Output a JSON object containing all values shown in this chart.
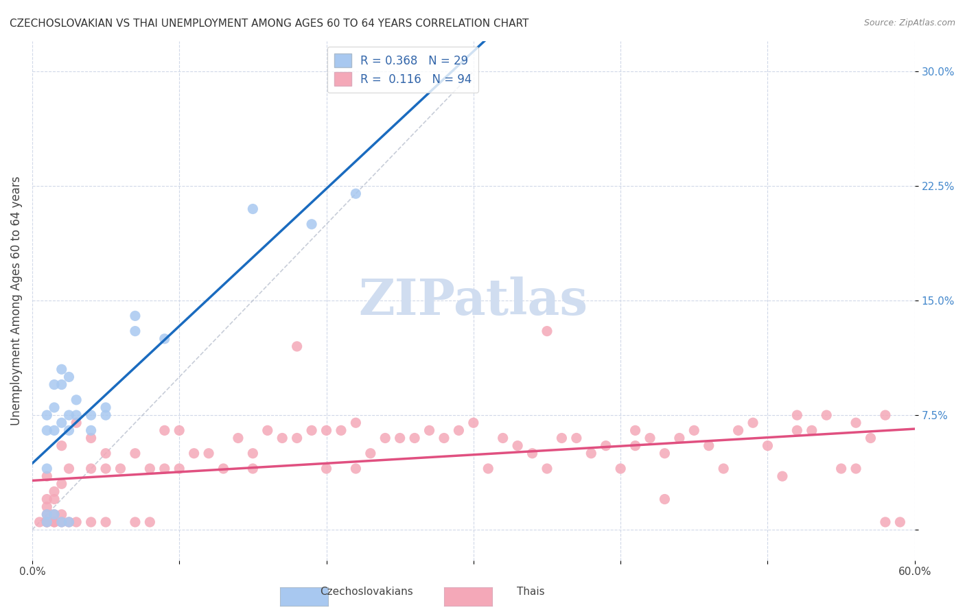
{
  "title": "CZECHOSLOVAKIAN VS THAI UNEMPLOYMENT AMONG AGES 60 TO 64 YEARS CORRELATION CHART",
  "source": "Source: ZipAtlas.com",
  "xlabel": "",
  "ylabel": "Unemployment Among Ages 60 to 64 years",
  "xmin": 0.0,
  "xmax": 0.6,
  "ymin": -0.02,
  "ymax": 0.32,
  "yticks": [
    0.0,
    0.075,
    0.15,
    0.225,
    0.3
  ],
  "ytick_labels": [
    "",
    "7.5%",
    "15.0%",
    "22.5%",
    "30.0%"
  ],
  "xticks": [
    0.0,
    0.1,
    0.2,
    0.3,
    0.4,
    0.5,
    0.6
  ],
  "xtick_labels": [
    "0.0%",
    "",
    "",
    "",
    "",
    "",
    "60.0%"
  ],
  "czech_R": 0.368,
  "czech_N": 29,
  "thai_R": 0.116,
  "thai_N": 94,
  "czech_color": "#a8c8f0",
  "thai_color": "#f4a8b8",
  "czech_line_color": "#1a6bbf",
  "thai_line_color": "#e05080",
  "watermark_color": "#d0ddf0",
  "background_color": "#ffffff",
  "grid_color": "#d0d8e8",
  "czech_x": [
    0.01,
    0.01,
    0.01,
    0.01,
    0.01,
    0.015,
    0.015,
    0.015,
    0.015,
    0.02,
    0.02,
    0.02,
    0.02,
    0.025,
    0.025,
    0.025,
    0.025,
    0.03,
    0.03,
    0.04,
    0.04,
    0.05,
    0.05,
    0.07,
    0.07,
    0.09,
    0.15,
    0.19,
    0.22
  ],
  "czech_y": [
    0.005,
    0.01,
    0.04,
    0.065,
    0.075,
    0.01,
    0.065,
    0.08,
    0.095,
    0.005,
    0.07,
    0.095,
    0.105,
    0.005,
    0.065,
    0.075,
    0.1,
    0.075,
    0.085,
    0.065,
    0.075,
    0.075,
    0.08,
    0.13,
    0.14,
    0.125,
    0.21,
    0.2,
    0.22
  ],
  "thai_x": [
    0.005,
    0.01,
    0.01,
    0.01,
    0.01,
    0.01,
    0.01,
    0.015,
    0.015,
    0.015,
    0.015,
    0.015,
    0.02,
    0.02,
    0.02,
    0.02,
    0.025,
    0.025,
    0.03,
    0.03,
    0.04,
    0.04,
    0.04,
    0.05,
    0.05,
    0.05,
    0.06,
    0.07,
    0.07,
    0.08,
    0.08,
    0.09,
    0.09,
    0.1,
    0.1,
    0.11,
    0.12,
    0.13,
    0.14,
    0.15,
    0.15,
    0.16,
    0.17,
    0.18,
    0.19,
    0.2,
    0.2,
    0.21,
    0.22,
    0.22,
    0.23,
    0.24,
    0.25,
    0.26,
    0.27,
    0.28,
    0.29,
    0.3,
    0.31,
    0.32,
    0.33,
    0.34,
    0.35,
    0.36,
    0.37,
    0.38,
    0.39,
    0.4,
    0.41,
    0.42,
    0.43,
    0.44,
    0.45,
    0.46,
    0.47,
    0.48,
    0.49,
    0.5,
    0.51,
    0.52,
    0.53,
    0.54,
    0.55,
    0.56,
    0.57,
    0.58,
    0.59,
    0.41,
    0.43,
    0.52,
    0.56,
    0.58,
    0.18,
    0.35
  ],
  "thai_y": [
    0.005,
    0.005,
    0.005,
    0.01,
    0.015,
    0.02,
    0.035,
    0.005,
    0.005,
    0.01,
    0.02,
    0.025,
    0.005,
    0.01,
    0.03,
    0.055,
    0.005,
    0.04,
    0.005,
    0.07,
    0.005,
    0.04,
    0.06,
    0.005,
    0.04,
    0.05,
    0.04,
    0.005,
    0.05,
    0.005,
    0.04,
    0.04,
    0.065,
    0.04,
    0.065,
    0.05,
    0.05,
    0.04,
    0.06,
    0.04,
    0.05,
    0.065,
    0.06,
    0.06,
    0.065,
    0.04,
    0.065,
    0.065,
    0.04,
    0.07,
    0.05,
    0.06,
    0.06,
    0.06,
    0.065,
    0.06,
    0.065,
    0.07,
    0.04,
    0.06,
    0.055,
    0.05,
    0.04,
    0.06,
    0.06,
    0.05,
    0.055,
    0.04,
    0.055,
    0.06,
    0.05,
    0.06,
    0.065,
    0.055,
    0.04,
    0.065,
    0.07,
    0.055,
    0.035,
    0.065,
    0.065,
    0.075,
    0.04,
    0.04,
    0.06,
    0.075,
    0.005,
    0.065,
    0.02,
    0.075,
    0.07,
    0.005,
    0.12,
    0.13
  ]
}
